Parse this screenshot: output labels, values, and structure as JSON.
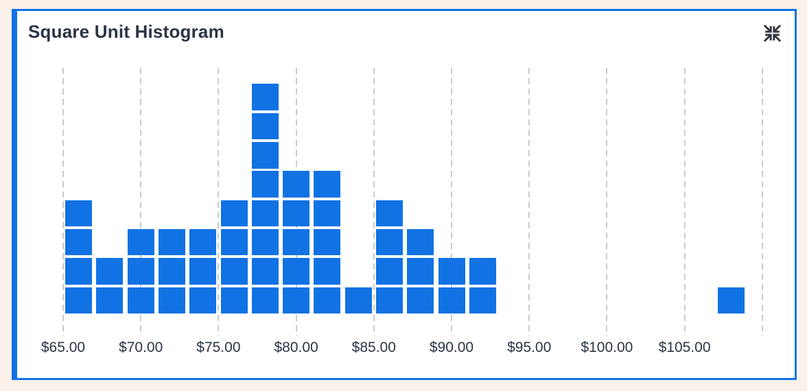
{
  "header": {
    "title": "Square Unit Histogram"
  },
  "icons": {
    "collapse": "collapse-icon"
  },
  "colors": {
    "page_background": "#fcf1e8",
    "card_background": "#ffffff",
    "accent_blue": "#1172e4",
    "square_blue": "#1172e4",
    "gridline_gray": "#cacbcc",
    "text_dark": "#2b3445",
    "icon_gray": "#34383f"
  },
  "chart_data": {
    "type": "bar",
    "variant": "square-unit-histogram",
    "title": "Square Unit Histogram",
    "orientation": "vertical",
    "bin_width": 2,
    "bins": [
      {
        "center": 66,
        "count": 4
      },
      {
        "center": 68,
        "count": 2
      },
      {
        "center": 70,
        "count": 3
      },
      {
        "center": 72,
        "count": 3
      },
      {
        "center": 74,
        "count": 3
      },
      {
        "center": 76,
        "count": 4
      },
      {
        "center": 78,
        "count": 8
      },
      {
        "center": 80,
        "count": 5
      },
      {
        "center": 82,
        "count": 5
      },
      {
        "center": 84,
        "count": 1
      },
      {
        "center": 86,
        "count": 4
      },
      {
        "center": 88,
        "count": 3
      },
      {
        "center": 90,
        "count": 2
      },
      {
        "center": 92,
        "count": 2
      },
      {
        "center": 108,
        "count": 1
      }
    ],
    "total_units": 50,
    "max_stack": 8,
    "x_axis": {
      "format": "currency",
      "tick_values": [
        65,
        70,
        75,
        80,
        85,
        90,
        95,
        100,
        105
      ],
      "tick_labels": [
        "$65.00",
        "$70.00",
        "$75.00",
        "$80.00",
        "$85.00",
        "$90.00",
        "$95.00",
        "$100.00",
        "$105.00"
      ],
      "gridline_values": [
        65,
        70,
        75,
        80,
        85,
        90,
        95,
        100,
        105,
        110
      ],
      "gridline_style": "dashed",
      "range": [
        65,
        110
      ]
    },
    "y_axis": {
      "visible": false
    },
    "legend": "none"
  }
}
